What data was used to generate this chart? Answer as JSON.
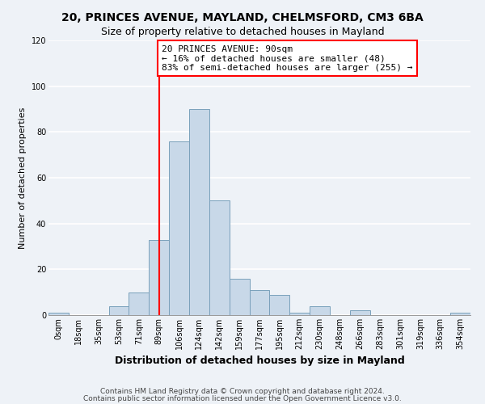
{
  "title_line1": "20, PRINCES AVENUE, MAYLAND, CHELMSFORD, CM3 6BA",
  "title_line2": "Size of property relative to detached houses in Mayland",
  "xlabel": "Distribution of detached houses by size in Mayland",
  "ylabel": "Number of detached properties",
  "footer_line1": "Contains HM Land Registry data © Crown copyright and database right 2024.",
  "footer_line2": "Contains public sector information licensed under the Open Government Licence v3.0.",
  "bin_labels": [
    "0sqm",
    "18sqm",
    "35sqm",
    "53sqm",
    "71sqm",
    "89sqm",
    "106sqm",
    "124sqm",
    "142sqm",
    "159sqm",
    "177sqm",
    "195sqm",
    "212sqm",
    "230sqm",
    "248sqm",
    "266sqm",
    "283sqm",
    "301sqm",
    "319sqm",
    "336sqm",
    "354sqm"
  ],
  "bar_values": [
    1,
    0,
    0,
    4,
    10,
    33,
    76,
    90,
    50,
    16,
    11,
    9,
    1,
    4,
    0,
    2,
    0,
    0,
    0,
    0,
    1
  ],
  "bar_color": "#c8d8e8",
  "bar_edge_color": "#7aa0bb",
  "property_line_idx": 5,
  "annotation_text": "20 PRINCES AVENUE: 90sqm\n← 16% of detached houses are smaller (48)\n83% of semi-detached houses are larger (255) →",
  "annotation_box_color": "white",
  "annotation_box_edge_color": "red",
  "vline_color": "red",
  "ylim": [
    0,
    120
  ],
  "yticks": [
    0,
    20,
    40,
    60,
    80,
    100,
    120
  ],
  "background_color": "#eef2f7",
  "grid_color": "white",
  "title_fontsize": 10,
  "subtitle_fontsize": 9,
  "xlabel_fontsize": 9,
  "ylabel_fontsize": 8,
  "tick_fontsize": 7,
  "annotation_fontsize": 8,
  "footer_fontsize": 6.5
}
